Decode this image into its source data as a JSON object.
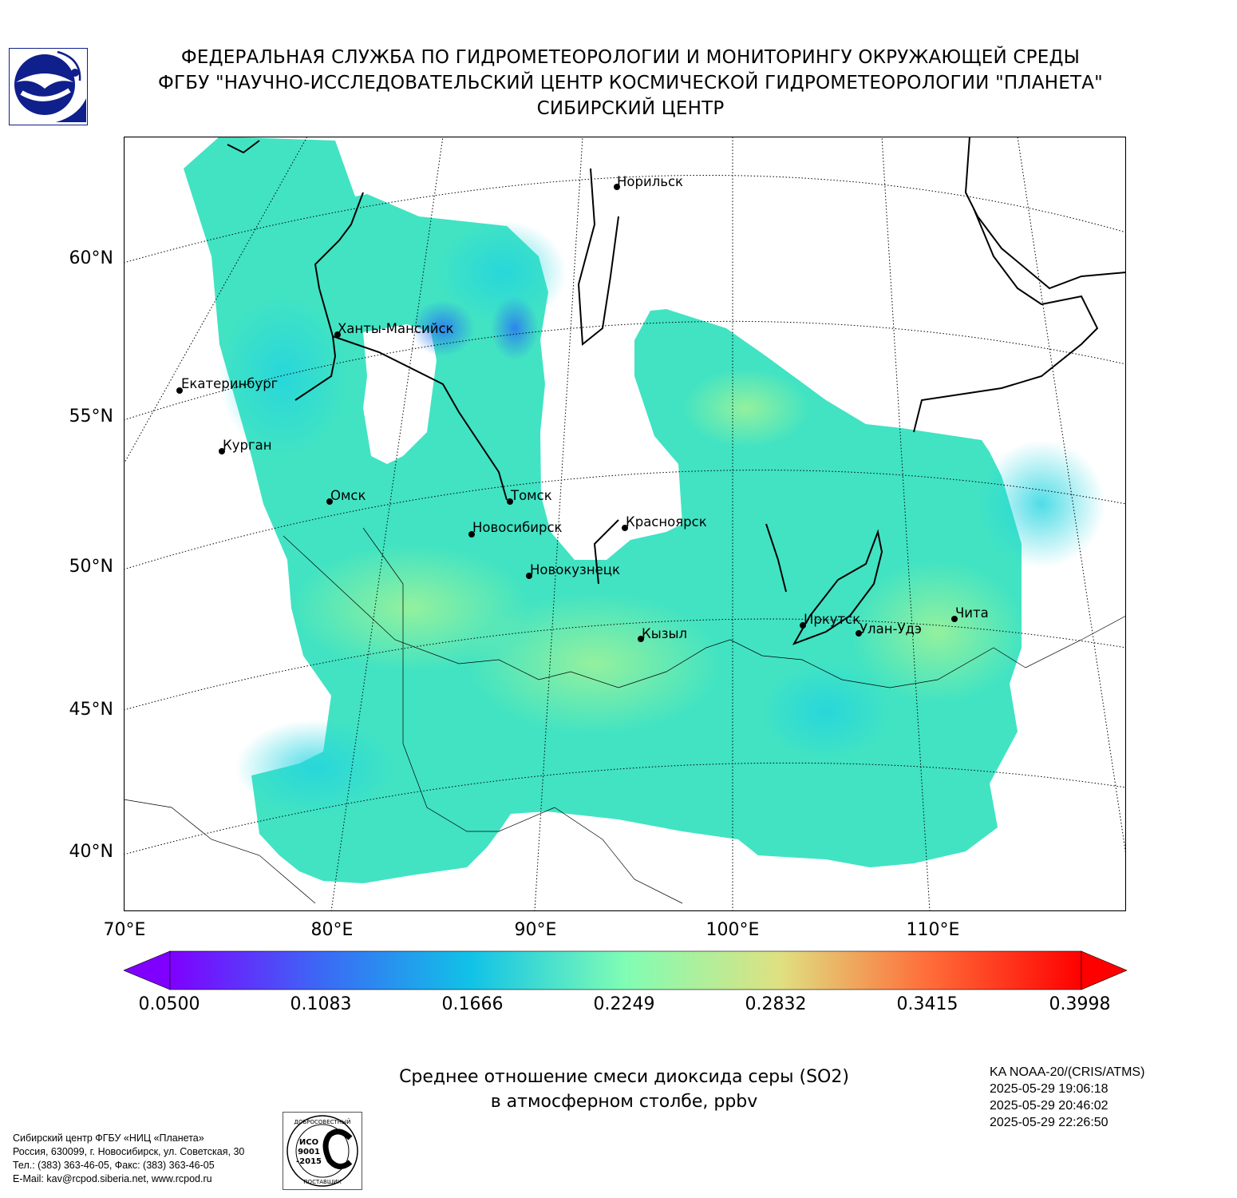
{
  "header": {
    "line1": "ФЕДЕРАЛЬНАЯ СЛУЖБА ПО ГИДРОМЕТЕОРОЛОГИИ И МОНИТОРИНГУ ОКРУЖАЮЩЕЙ СРЕДЫ",
    "line2": "ФГБУ \"НАУЧНО-ИССЛЕДОВАТЕЛЬСКИЙ ЦЕНТР КОСМИЧЕСКОЙ ГИДРОМЕТЕОРОЛОГИИ \"ПЛАНЕТА\"",
    "line3": "СИБИРСКИЙ ЦЕНТР"
  },
  "map": {
    "lat_labels": [
      "60°N",
      "55°N",
      "50°N",
      "45°N",
      "40°N"
    ],
    "lon_labels": [
      "70°E",
      "80°E",
      "90°E",
      "100°E",
      "110°E"
    ],
    "cities": [
      {
        "name": "Норильск"
      },
      {
        "name": "Ханты-Мансийск"
      },
      {
        "name": "Екатеринбург"
      },
      {
        "name": "Курган"
      },
      {
        "name": "Омск"
      },
      {
        "name": "Томск"
      },
      {
        "name": "Новосибирск"
      },
      {
        "name": "Красноярск"
      },
      {
        "name": "Новокузнецк"
      },
      {
        "name": "Иркутск"
      },
      {
        "name": "Улан-Удэ"
      },
      {
        "name": "Чита"
      },
      {
        "name": "Кызыл"
      }
    ]
  },
  "colorbar": {
    "ticks": [
      "0.0500",
      "0.1083",
      "0.1666",
      "0.2249",
      "0.2832",
      "0.3415",
      "0.3998"
    ],
    "min": 0.05,
    "max": 0.3998,
    "extend": "both"
  },
  "caption": {
    "line1": "Среднее отношение смеси диоксида серы (SO2)",
    "line2": "в атмосферном столбе, ppbv"
  },
  "satellite": {
    "name": "KA NOAA-20/(CRIS/ATMS)",
    "times": [
      "2025-05-29 19:06:18",
      "2025-05-29 20:46:02",
      "2025-05-29 22:26:50"
    ]
  },
  "footer": {
    "lines": [
      "Сибирский центр ФГБУ «НИЦ «Планета»",
      "Россия, 630099, г. Новосибирск, ул. Советская, 30",
      "Тел.: (383) 363-46-05, Факс: (383) 363-46-05",
      "E-Mail: kav@rcpod.siberia.net, www.rcpod.ru"
    ]
  },
  "iso_stamp": {
    "top": "ДОБРОСОВЕСТНЫЙ",
    "line1": "ИСО",
    "line2": "9001",
    "line3": "-2015",
    "bottom": "ПОСТАВЩИК"
  }
}
